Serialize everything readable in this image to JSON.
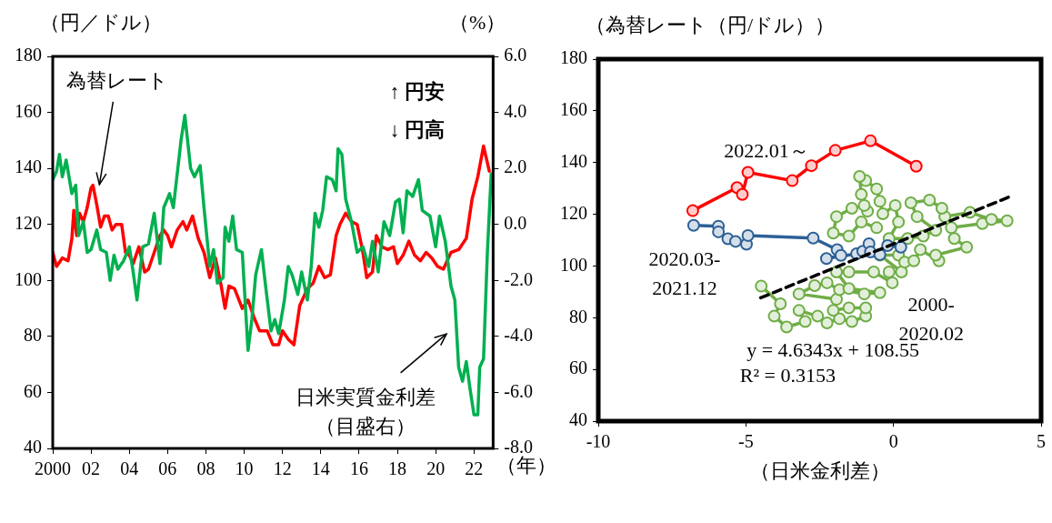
{
  "chart_data": [
    {
      "type": "line",
      "xlabel": "（年）",
      "ylabel": "（円／ドル）",
      "y2label": "（%）",
      "xlim": [
        2000,
        2023
      ],
      "xticks": [
        2000,
        {
          "value": 2002,
          "label": "02"
        },
        {
          "value": 2004,
          "label": "04"
        },
        {
          "value": 2006,
          "label": "06"
        },
        {
          "value": 2008,
          "label": "08"
        },
        {
          "value": 2010,
          "label": "10"
        },
        {
          "value": 2012,
          "label": "12"
        },
        {
          "value": 2014,
          "label": "14"
        },
        {
          "value": 2016,
          "label": "16"
        },
        {
          "value": 2018,
          "label": "18"
        },
        {
          "value": 2020,
          "label": "20"
        },
        {
          "value": 2022,
          "label": "22"
        }
      ],
      "ylim": [
        40,
        180
      ],
      "yticks": [
        40,
        60,
        80,
        100,
        120,
        140,
        160,
        180
      ],
      "y2lim": [
        -8,
        6
      ],
      "y2ticks": [
        {
          "value": -8,
          "label": "-8.0"
        },
        {
          "value": -6,
          "label": "-6.0"
        },
        {
          "value": -4,
          "label": "-4.0"
        },
        {
          "value": -2,
          "label": "-2.0"
        },
        {
          "value": 0,
          "label": "0.0"
        },
        {
          "value": 2,
          "label": "2.0"
        },
        {
          "value": 4,
          "label": "4.0"
        },
        {
          "value": 6,
          "label": "6.0"
        }
      ],
      "grid": false,
      "legend": false,
      "marker": "none",
      "annotations": [
        "↑ 円安",
        "↓ 円高"
      ],
      "series": [
        {
          "name": "為替レート",
          "color": "#ff0000",
          "x": [
            2000.0,
            2000.2,
            2000.5,
            2000.8,
            2001.0,
            2001.1,
            2001.25,
            2001.4,
            2001.6,
            2001.8,
            2002.0,
            2002.1,
            2002.3,
            2002.5,
            2002.7,
            2002.9,
            2003.1,
            2003.3,
            2003.6,
            2003.8,
            2004.0,
            2004.2,
            2004.5,
            2004.8,
            2005.0,
            2005.3,
            2005.6,
            2005.8,
            2006.0,
            2006.2,
            2006.5,
            2006.8,
            2007.0,
            2007.3,
            2007.6,
            2007.9,
            2008.2,
            2008.5,
            2008.8,
            2009.0,
            2009.2,
            2009.5,
            2009.9,
            2010.2,
            2010.5,
            2010.8,
            2011.2,
            2011.5,
            2011.8,
            2012.0,
            2012.3,
            2012.6,
            2012.9,
            2013.3,
            2013.6,
            2013.9,
            2014.2,
            2014.5,
            2014.8,
            2015.0,
            2015.3,
            2015.6,
            2015.9,
            2016.2,
            2016.4,
            2016.7,
            2016.9,
            2017.2,
            2017.5,
            2017.8,
            2018.0,
            2018.3,
            2018.6,
            2018.9,
            2019.2,
            2019.5,
            2019.8,
            2020.1,
            2020.4,
            2020.8,
            2021.2,
            2021.6,
            2021.9,
            2022.2,
            2022.5,
            2022.8
          ],
          "values": [
            110,
            105,
            108,
            107,
            115,
            125,
            116,
            124,
            121,
            126,
            133,
            134,
            127,
            119,
            123,
            123,
            118,
            120,
            120,
            110,
            109,
            106,
            112,
            103,
            104,
            110,
            116,
            118,
            116,
            112,
            118,
            121,
            118,
            123,
            115,
            110,
            101,
            108,
            98,
            90,
            98,
            97,
            90,
            93,
            87,
            82,
            82,
            77,
            77,
            82,
            79,
            77,
            91,
            97,
            99,
            105,
            101,
            102,
            116,
            120,
            124,
            121,
            120,
            110,
            101,
            103,
            116,
            112,
            111,
            112,
            106,
            109,
            114,
            109,
            107,
            110,
            108,
            105,
            104,
            110,
            111,
            115,
            129,
            137,
            148,
            139
          ]
        },
        {
          "name": "日米実質金利差（目盛右）",
          "color": "#00b050",
          "axis": "y2",
          "x": [
            2000.0,
            2000.2,
            2000.35,
            2000.5,
            2000.7,
            2001.0,
            2001.2,
            2001.35,
            2001.6,
            2001.8,
            2002.0,
            2002.3,
            2002.5,
            2002.8,
            2003.0,
            2003.2,
            2003.4,
            2003.7,
            2004.0,
            2004.2,
            2004.4,
            2004.7,
            2005.0,
            2005.3,
            2005.6,
            2005.8,
            2006.1,
            2006.3,
            2006.7,
            2006.9,
            2007.2,
            2007.4,
            2007.7,
            2007.9,
            2008.2,
            2008.4,
            2008.6,
            2008.9,
            2009.0,
            2009.2,
            2009.4,
            2009.6,
            2009.9,
            2010.2,
            2010.4,
            2010.6,
            2010.9,
            2011.1,
            2011.4,
            2011.6,
            2011.8,
            2012.1,
            2012.3,
            2012.5,
            2012.8,
            2013.0,
            2013.3,
            2013.5,
            2013.7,
            2013.9,
            2014.1,
            2014.3,
            2014.6,
            2014.8,
            2014.9,
            2015.1,
            2015.3,
            2015.6,
            2015.9,
            2016.2,
            2016.5,
            2016.7,
            2017.0,
            2017.3,
            2017.6,
            2017.9,
            2018.1,
            2018.3,
            2018.5,
            2018.8,
            2019.1,
            2019.3,
            2019.7,
            2020.0,
            2020.2,
            2020.5,
            2020.8,
            2021.0,
            2021.2,
            2021.4,
            2021.6,
            2021.8,
            2022.0,
            2022.2,
            2022.3,
            2022.5,
            2022.7,
            2022.9
          ],
          "values": [
            1.6,
            1.9,
            2.5,
            1.7,
            2.3,
            1.1,
            1.4,
            -0.4,
            0.1,
            -1.0,
            -0.9,
            -0.2,
            -0.9,
            -1.0,
            -2.0,
            -1.1,
            -1.6,
            -1.3,
            -0.8,
            -1.7,
            -2.7,
            -0.8,
            -0.7,
            0.4,
            -1.4,
            0.6,
            1.1,
            0.6,
            3.0,
            3.9,
            2.0,
            1.7,
            2.1,
            0.6,
            -1.5,
            -0.9,
            -2.1,
            -1.9,
            -0.1,
            -0.6,
            0.3,
            -0.9,
            -1.0,
            -4.5,
            -3.4,
            -1.8,
            -0.9,
            -2.1,
            -3.8,
            -3.4,
            -3.9,
            -2.7,
            -1.5,
            -1.8,
            -2.5,
            -1.7,
            -2.7,
            -1.5,
            0.4,
            -0.1,
            0.5,
            1.7,
            1.6,
            1.2,
            2.7,
            2.5,
            0.9,
            0.1,
            -1.0,
            -0.8,
            -1.5,
            -0.6,
            -1.7,
            0.1,
            -0.4,
            0.8,
            0.9,
            -0.3,
            1.2,
            1.0,
            1.6,
            0.5,
            0.3,
            -0.8,
            0.3,
            -0.6,
            -2.2,
            -2.7,
            -5.1,
            -5.6,
            -4.9,
            -5.9,
            -6.8,
            -6.8,
            -5.1,
            -4.8,
            -1.0,
            1.8
          ]
        }
      ]
    },
    {
      "type": "line",
      "xlabel": "（日米金利差）",
      "ylabel": "（為替レート（円/ドル））",
      "xlim": [
        -10,
        5
      ],
      "xticks": [
        -10,
        -5,
        0,
        5
      ],
      "ylim": [
        40,
        180
      ],
      "yticks": [
        40,
        60,
        80,
        100,
        120,
        140,
        160,
        180
      ],
      "grid": false,
      "legend": false,
      "marker": "circle",
      "annotations": [
        "y = 4.6343x + 108.55",
        "R² = 0.3153"
      ],
      "series": [
        {
          "name": "2000-\n2020.02",
          "color": "#70ad47",
          "x": [
            -4.48,
            -3.83,
            -4.04,
            -3.62,
            -2.99,
            -3.2,
            -2.57,
            -2.25,
            -1.83,
            -1.41,
            -0.94,
            -0.94,
            -1.51,
            -2.04,
            -1.93,
            -3.2,
            -2.67,
            -2.25,
            -1.83,
            -0.99,
            -0.46,
            -1.51,
            -1.93,
            -1.51,
            -0.67,
            -0.04,
            -0.15,
            0.27,
            -0.46,
            0.17,
            0.38,
            0.69,
            0.91,
            1.54,
            1.43,
            2.48,
            2.06,
            1.96,
            3.01,
            3.85,
            3.32,
            2.59,
            1.74,
            1.64,
            1.22,
            0.59,
            0.8,
            1.43,
            1.01,
            0.48,
            -0.15,
            0.17,
            0.06,
            -0.36,
            -0.46,
            -0.57,
            -0.94,
            -1.15,
            -1.09,
            -0.88,
            -0.99,
            -1.41,
            -1.93,
            -2.04,
            -1.51,
            -1.09,
            -0.57
          ],
          "values": [
            92.2,
            85.4,
            80.6,
            76.4,
            78.5,
            82.8,
            80.6,
            78.0,
            79.6,
            78.5,
            80.6,
            83.8,
            83.8,
            82.8,
            87.1,
            89.2,
            92.4,
            93.5,
            90.8,
            89.2,
            89.7,
            91.3,
            97.7,
            97.7,
            97.7,
            93.5,
            97.7,
            97.7,
            104.2,
            104.2,
            101.5,
            102.0,
            106.3,
            102.0,
            104.2,
            107.3,
            110.6,
            114.8,
            116.4,
            117.5,
            118.0,
            120.7,
            119.1,
            122.3,
            125.5,
            124.4,
            119.1,
            113.8,
            111.6,
            110.6,
            110.6,
            117.0,
            123.4,
            120.2,
            125.0,
            129.8,
            133.0,
            134.6,
            127.7,
            121.2,
            123.4,
            122.3,
            119.1,
            112.7,
            111.6,
            117.0,
            114.8
          ]
        },
        {
          "name": "2020.03-\n2021.12",
          "color": "#2e6096",
          "x": [
            -6.77,
            -5.93,
            -5.93,
            -5.61,
            -5.35,
            -4.98,
            -4.93,
            -2.72,
            -1.91,
            -1.78,
            -2.27,
            -1.25,
            -1.04,
            -0.83,
            -0.78,
            -0.46,
            -0.2,
            0.25
          ],
          "values": [
            115.7,
            115.4,
            113.2,
            110.5,
            109.5,
            108.4,
            111.8,
            110.8,
            106.3,
            104.1,
            102.9,
            104.7,
            105.7,
            108.6,
            105.4,
            104.4,
            107.9,
            107.3
          ]
        },
        {
          "name": "2022.01～",
          "color": "#ff0000",
          "x": [
            -6.8,
            -5.3,
            -5.12,
            -4.93,
            -3.43,
            -2.78,
            -1.97,
            -0.78,
            0.77
          ],
          "values": [
            121.4,
            130.3,
            127.7,
            136.2,
            133.0,
            138.8,
            144.7,
            148.4,
            138.6
          ]
        },
        {
          "type": "line",
          "color": "#000000",
          "marker": "none",
          "line_style": "dashed",
          "x": [
            -4.5,
            3.9
          ],
          "values": [
            87.7,
            126.6
          ]
        }
      ]
    }
  ]
}
